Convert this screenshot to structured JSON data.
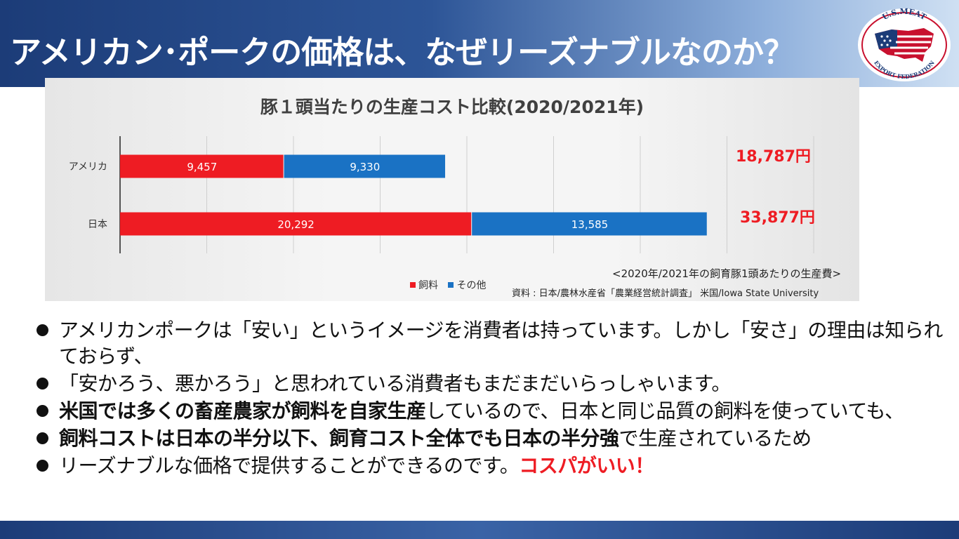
{
  "slide": {
    "title": "アメリカン･ポークの価格は、なぜリーズナブルなのか？",
    "logo": {
      "icon": "us-meat-export-federation-logo-icon",
      "top_text": "U.S.MEAT",
      "bottom_text": "EXPORT FEDERATION"
    }
  },
  "chart_data": {
    "type": "bar",
    "orientation": "horizontal",
    "stacked": true,
    "title": "豚１頭当たりの生産コスト比較(2020/2021年)",
    "categories": [
      "アメリカ",
      "日本"
    ],
    "series": [
      {
        "name": "飼料",
        "color": "#ee1c23",
        "values": [
          9457,
          20292
        ],
        "labels": [
          "9,457",
          "20,292"
        ]
      },
      {
        "name": "その他",
        "color": "#1a72c4",
        "values": [
          9330,
          13585
        ],
        "labels": [
          "9,330",
          "13,585"
        ]
      }
    ],
    "totals": [
      "18,787円",
      "33,877円"
    ],
    "xlim": [
      0,
      40000
    ],
    "grid": true,
    "legend_position": "bottom",
    "notes": [
      "<2020年/2021年の飼育豚1頭あたりの生産費>",
      "資料 : 日本/農林水産省「農業経営統計調査」 米国/Iowa State University"
    ]
  },
  "bullets": [
    {
      "parts": [
        {
          "text": "アメリカンポークは「安い」というイメージを消費者は持っています。しかし「安さ」の理由は知られておらず、",
          "style": "normal"
        }
      ]
    },
    {
      "parts": [
        {
          "text": "「安かろう、悪かろう」と思われている消費者もまだまだいらっしゃいます。",
          "style": "normal"
        }
      ]
    },
    {
      "parts": [
        {
          "text": "米国では多くの畜産農家が飼料を自家生産",
          "style": "bold"
        },
        {
          "text": "しているので、日本と同じ品質の飼料を使っていても、",
          "style": "normal"
        }
      ]
    },
    {
      "parts": [
        {
          "text": "飼料コストは日本の半分以下、飼育コスト全体でも日本の半分強",
          "style": "bold"
        },
        {
          "text": "で生産されているため",
          "style": "normal"
        }
      ]
    },
    {
      "parts": [
        {
          "text": "リーズナブルな価格で提供することができるのです。",
          "style": "normal"
        },
        {
          "text": "コスパがいい！",
          "style": "red"
        }
      ]
    }
  ]
}
